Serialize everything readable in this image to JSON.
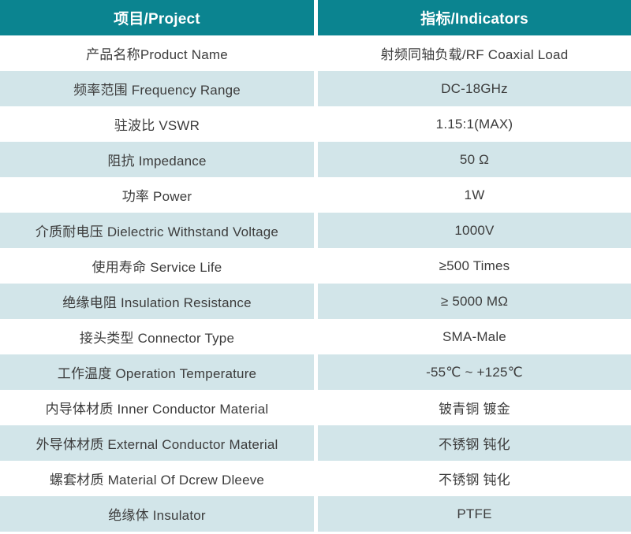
{
  "table": {
    "header": {
      "project": "项目/Project",
      "indicators": "指标/Indicators"
    },
    "rows": [
      {
        "project": "产品名称Product Name",
        "indicator": "射频同轴负载/RF Coaxial Load"
      },
      {
        "project": "频率范围 Frequency Range",
        "indicator": "DC-18GHz"
      },
      {
        "project": "驻波比 VSWR",
        "indicator": "1.15:1(MAX)"
      },
      {
        "project": "阻抗 Impedance",
        "indicator": "50 Ω"
      },
      {
        "project": "功率 Power",
        "indicator": "1W"
      },
      {
        "project": "介质耐电压 Dielectric Withstand Voltage",
        "indicator": "1000V"
      },
      {
        "project": "使用寿命 Service Life",
        "indicator": "≥500 Times"
      },
      {
        "project": "绝缘电阻 Insulation Resistance",
        "indicator": "≥ 5000 MΩ"
      },
      {
        "project": "接头类型 Connector Type",
        "indicator": "SMA-Male"
      },
      {
        "project": "工作温度 Operation Temperature",
        "indicator": "-55℃ ~ +125℃"
      },
      {
        "project": "内导体材质 Inner Conductor Material",
        "indicator": "铍青铜 镀金"
      },
      {
        "project": "外导体材质 External Conductor Material",
        "indicator": "不锈钢 钝化"
      },
      {
        "project": "螺套材质 Material Of Dcrew Dleeve",
        "indicator": "不锈钢 钝化"
      },
      {
        "project": "绝缘体 Insulator",
        "indicator": "PTFE"
      }
    ]
  },
  "colors": {
    "header_bg": "#0b8490",
    "header_text": "#ffffff",
    "row_alt_bg": "#d2e5e9",
    "row_bg": "#ffffff",
    "body_text": "#3c3c3c"
  },
  "chart_data": {
    "type": "table",
    "columns": [
      "项目/Project",
      "指标/Indicators"
    ],
    "rows": [
      [
        "产品名称Product Name",
        "射频同轴负载/RF Coaxial Load"
      ],
      [
        "频率范围 Frequency Range",
        "DC-18GHz"
      ],
      [
        "驻波比 VSWR",
        "1.15:1(MAX)"
      ],
      [
        "阻抗 Impedance",
        "50 Ω"
      ],
      [
        "功率 Power",
        "1W"
      ],
      [
        "介质耐电压 Dielectric Withstand Voltage",
        "1000V"
      ],
      [
        "使用寿命 Service Life",
        "≥500 Times"
      ],
      [
        "绝缘电阻 Insulation Resistance",
        "≥ 5000 MΩ"
      ],
      [
        "接头类型 Connector Type",
        "SMA-Male"
      ],
      [
        "工作温度 Operation Temperature",
        "-55℃ ~ +125℃"
      ],
      [
        "内导体材质 Inner Conductor Material",
        "铍青铜 镀金"
      ],
      [
        "外导体材质 External Conductor Material",
        "不锈钢 钝化"
      ],
      [
        "螺套材质 Material Of Dcrew Dleeve",
        "不锈钢 钝化"
      ],
      [
        "绝缘体 Insulator",
        "PTFE"
      ]
    ]
  }
}
